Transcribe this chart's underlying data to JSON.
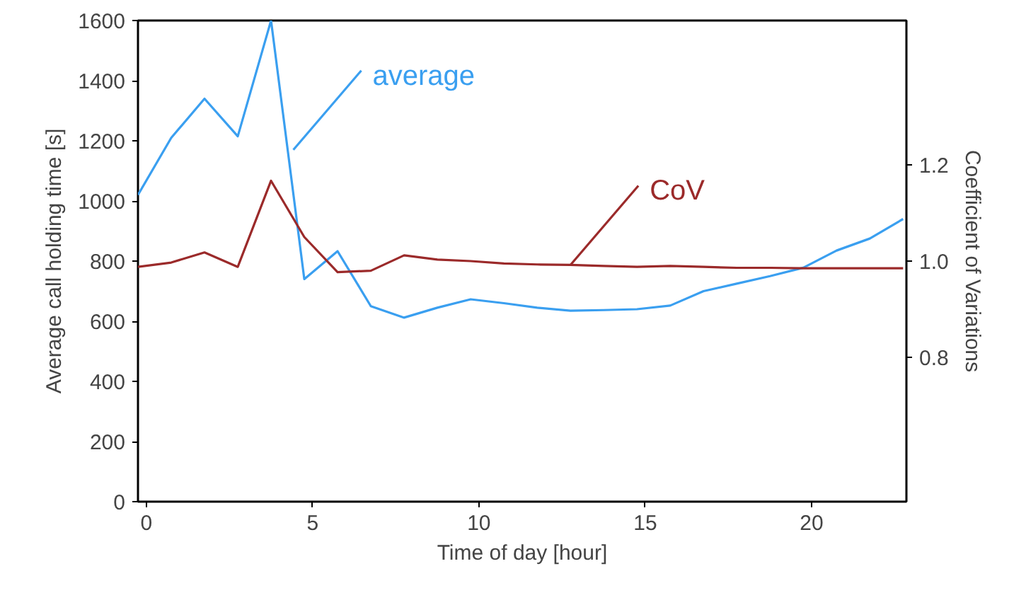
{
  "chart_data": {
    "type": "line",
    "xlabel": "Time of day [hour]",
    "ylabel": "Average call holding time [s]",
    "y2label": "Coefficient of Variations",
    "x": [
      -0.25,
      0.75,
      1.75,
      2.75,
      3.75,
      4.75,
      5.75,
      6.75,
      7.75,
      8.75,
      9.75,
      10.75,
      11.75,
      12.75,
      13.75,
      14.75,
      15.75,
      16.75,
      17.75,
      18.75,
      19.75,
      20.75,
      21.75,
      22.75
    ],
    "xlim": [
      -0.25,
      22.85
    ],
    "xticks": [
      0,
      5,
      10,
      15,
      20
    ],
    "ylim": [
      0,
      1600
    ],
    "yticks": [
      0,
      200,
      400,
      600,
      800,
      1000,
      1200,
      1400,
      1600
    ],
    "y2lim": [
      0.5,
      1.5
    ],
    "y2ticks": [
      0.8,
      {
        "value": 1,
        "label": "1.0"
      },
      1.2
    ],
    "grid": false,
    "legend": false,
    "line_style": "solid",
    "series": [
      {
        "name": "average",
        "color": "#3a9ff0",
        "values": [
          1020,
          1210,
          1340,
          1215,
          1600,
          740,
          833,
          650,
          612,
          645,
          673,
          660,
          645,
          635,
          637,
          640,
          652,
          700,
          725,
          750,
          778,
          835,
          875,
          940
        ]
      },
      {
        "name": "CoV",
        "color": "#9b2a2a",
        "axis": "y2",
        "values": [
          0.988,
          0.997,
          1.018,
          0.988,
          1.167,
          1.05,
          0.977,
          0.98,
          1.012,
          1.003,
          1.0,
          0.995,
          0.993,
          0.992,
          0.99,
          0.988,
          0.99,
          0.988,
          0.986,
          0.986,
          0.985,
          0.985,
          0.985,
          0.985
        ]
      }
    ]
  }
}
